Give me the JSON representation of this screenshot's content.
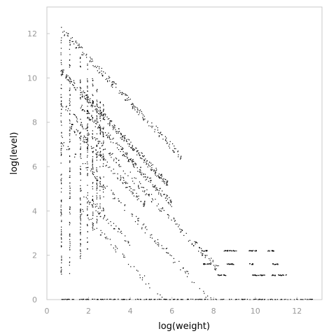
{
  "chart_data": {
    "type": "scatter",
    "title": "",
    "xlabel": "log(weight)",
    "ylabel": "log(level)",
    "xlim": [
      0,
      13.2
    ],
    "ylim": [
      0,
      13.2
    ],
    "x_ticks": [
      "0",
      "2",
      "4",
      "6",
      "8",
      "10",
      "12"
    ],
    "y_ticks": [
      "0",
      "2",
      "4",
      "6",
      "8",
      "10",
      "12"
    ],
    "grid": false,
    "legend": "none",
    "point_color": "#000000",
    "series": [
      {
        "bands": [
          {
            "sum": 12.9,
            "x_range": [
              0.69,
              6.45
            ],
            "density": 0.25
          },
          {
            "sum": 11.0,
            "x_range": [
              0.69,
              5.8
            ],
            "density": 0.45
          },
          {
            "sum": 10.3,
            "x_range": [
              1.6,
              6.0
            ],
            "density": 0.35
          },
          {
            "sum": 9.6,
            "x_range": [
              0.69,
              8.4
            ],
            "density": 0.18
          },
          {
            "sum": 9.0,
            "x_range": [
              1.1,
              4.7
            ],
            "density": 0.25
          },
          {
            "sum": 7.9,
            "x_range": [
              0.69,
              9.5
            ],
            "density": 0.12
          },
          {
            "sum": 6.5,
            "x_range": [
              1.6,
              4.0
            ],
            "density": 0.15
          },
          {
            "sum": 5.6,
            "x_range": [
              1.6,
              9.0
            ],
            "density": 0.08
          }
        ],
        "columns": [
          {
            "x": 0.69,
            "y_range": [
              1.0,
              12.1
            ]
          },
          {
            "x": 1.1,
            "y_range": [
              1.0,
              11.7
            ]
          },
          {
            "x": 1.61,
            "y_range": [
              1.8,
              11.2
            ]
          },
          {
            "x": 1.95,
            "y_range": [
              2.0,
              10.7
            ]
          },
          {
            "x": 2.2,
            "y_range": [
              3.0,
              10.0
            ]
          },
          {
            "x": 2.4,
            "y_range": [
              3.2,
              9.5
            ]
          },
          {
            "x": 2.56,
            "y_range": [
              3.5,
              9.0
            ]
          },
          {
            "x": 2.71,
            "y_range": [
              4.0,
              8.8
            ]
          }
        ],
        "row_clusters": [
          {
            "y": 2.2,
            "x_ranges": [
              [
                7.4,
                7.7
              ],
              [
                8.5,
                9.1
              ],
              [
                9.7,
                10.1
              ],
              [
                10.6,
                10.9
              ]
            ]
          },
          {
            "y": 1.6,
            "x_ranges": [
              [
                7.5,
                7.9
              ],
              [
                8.6,
                9.0
              ],
              [
                9.7,
                9.9
              ],
              [
                10.8,
                11.1
              ]
            ]
          },
          {
            "y": 1.1,
            "x_ranges": [
              [
                8.2,
                8.6
              ],
              [
                9.8,
                10.5
              ],
              [
                10.8,
                11.5
              ]
            ]
          },
          {
            "y": 0.0,
            "x_ranges": [
              [
                0.7,
                12.8
              ]
            ]
          }
        ]
      }
    ]
  }
}
